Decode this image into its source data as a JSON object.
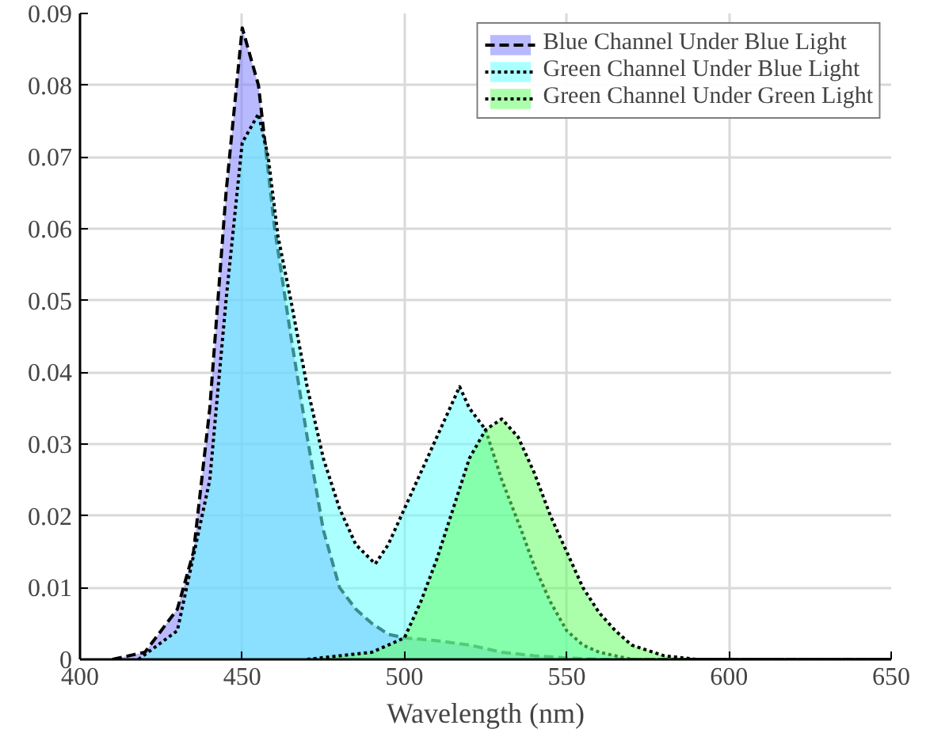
{
  "chart_data": {
    "type": "area",
    "xlabel": "Wavelength (nm)",
    "xlim": [
      400,
      650
    ],
    "ylim": [
      0,
      0.09
    ],
    "xticks": [
      400,
      450,
      500,
      550,
      600,
      650
    ],
    "yticks": [
      0,
      0.01,
      0.02,
      0.03,
      0.04,
      0.05,
      0.06,
      0.07,
      0.08,
      0.09
    ],
    "grid": true,
    "legend": "top right",
    "series": [
      {
        "name": "Blue Channel Under Blue Light",
        "color": "#8080ff",
        "line_style": "dashed",
        "x": [
          410,
          420,
          430,
          435,
          440,
          445,
          450,
          455,
          460,
          465,
          470,
          475,
          480,
          485,
          490,
          495,
          500,
          505,
          510,
          520,
          530,
          540,
          550,
          560,
          650
        ],
        "values": [
          0,
          0.001,
          0.007,
          0.015,
          0.035,
          0.065,
          0.088,
          0.08,
          0.06,
          0.045,
          0.031,
          0.018,
          0.01,
          0.007,
          0.005,
          0.0035,
          0.003,
          0.0028,
          0.0026,
          0.002,
          0.001,
          0.0005,
          0.0002,
          0,
          0
        ]
      },
      {
        "name": "Green Channel Under Blue Light",
        "color": "#66ffff",
        "line_style": "dotted",
        "x": [
          418,
          430,
          440,
          445,
          450,
          455,
          458,
          461,
          465,
          470,
          475,
          480,
          485,
          491,
          495,
          500,
          505,
          510,
          517,
          520,
          525,
          530,
          536,
          540,
          545,
          550,
          555,
          560,
          570,
          650
        ],
        "values": [
          0,
          0.004,
          0.025,
          0.05,
          0.072,
          0.076,
          0.07,
          0.059,
          0.05,
          0.038,
          0.028,
          0.021,
          0.016,
          0.0133,
          0.016,
          0.021,
          0.026,
          0.031,
          0.038,
          0.035,
          0.032,
          0.025,
          0.018,
          0.013,
          0.008,
          0.004,
          0.002,
          0.001,
          0,
          0
        ]
      },
      {
        "name": "Green Channel Under Green Light",
        "color": "#66ff66",
        "line_style": "dotted",
        "x": [
          470,
          480,
          490,
          495,
          500,
          505,
          510,
          515,
          520,
          525,
          530,
          535,
          540,
          545,
          550,
          555,
          560,
          565,
          570,
          580,
          590,
          650
        ],
        "values": [
          0,
          0.0005,
          0.001,
          0.002,
          0.003,
          0.008,
          0.014,
          0.021,
          0.028,
          0.032,
          0.0335,
          0.031,
          0.026,
          0.02,
          0.015,
          0.01,
          0.0065,
          0.004,
          0.002,
          0.0005,
          0,
          0
        ]
      }
    ]
  }
}
